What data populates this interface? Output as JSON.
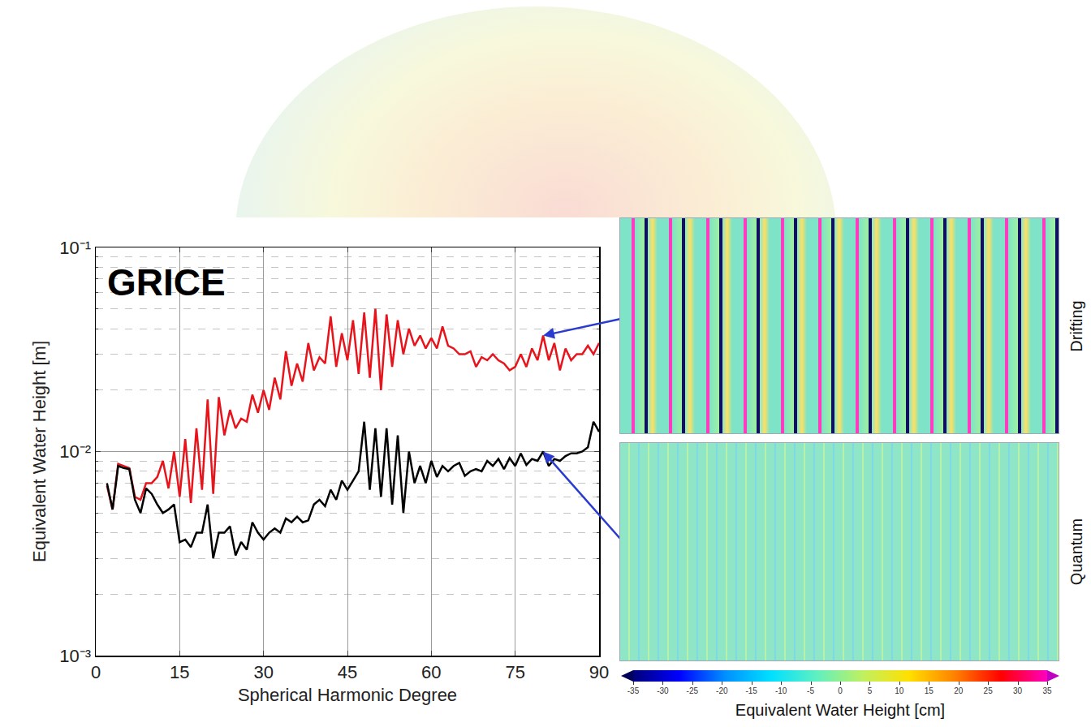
{
  "chart_data": {
    "type": "line",
    "title": "GRICE",
    "x_label": "Spherical Harmonic Degree",
    "y_label": "Equivalent Water Height [m]",
    "x": [
      2,
      3,
      4,
      5,
      6,
      7,
      8,
      9,
      10,
      11,
      12,
      13,
      14,
      15,
      16,
      17,
      18,
      19,
      20,
      21,
      22,
      23,
      24,
      25,
      26,
      27,
      28,
      29,
      30,
      31,
      32,
      33,
      34,
      35,
      36,
      37,
      38,
      39,
      40,
      41,
      42,
      43,
      44,
      45,
      46,
      47,
      48,
      49,
      50,
      51,
      52,
      53,
      54,
      55,
      56,
      57,
      58,
      59,
      60,
      61,
      62,
      63,
      64,
      65,
      66,
      67,
      68,
      69,
      70,
      71,
      72,
      73,
      74,
      75,
      76,
      77,
      78,
      79,
      80,
      81,
      82,
      83,
      84,
      85,
      86,
      87,
      88,
      89,
      90
    ],
    "series": [
      {
        "name": "Drifting",
        "color": "#e8141c",
        "values": [
          0.0068,
          0.0052,
          0.0087,
          0.0085,
          0.0083,
          0.006,
          0.0058,
          0.007,
          0.007,
          0.0075,
          0.009,
          0.0066,
          0.01,
          0.006,
          0.0115,
          0.0056,
          0.013,
          0.0065,
          0.018,
          0.0062,
          0.0185,
          0.012,
          0.016,
          0.013,
          0.0145,
          0.014,
          0.019,
          0.0155,
          0.02,
          0.016,
          0.023,
          0.018,
          0.031,
          0.021,
          0.027,
          0.022,
          0.034,
          0.025,
          0.029,
          0.027,
          0.046,
          0.026,
          0.038,
          0.028,
          0.044,
          0.024,
          0.048,
          0.023,
          0.05,
          0.02,
          0.047,
          0.026,
          0.044,
          0.03,
          0.04,
          0.033,
          0.037,
          0.032,
          0.036,
          0.032,
          0.041,
          0.033,
          0.032,
          0.03,
          0.03,
          0.031,
          0.026,
          0.029,
          0.028,
          0.03,
          0.028,
          0.027,
          0.025,
          0.026,
          0.03,
          0.026,
          0.032,
          0.028,
          0.037,
          0.028,
          0.034,
          0.025,
          0.032,
          0.028,
          0.03,
          0.03,
          0.033,
          0.03,
          0.034
        ]
      },
      {
        "name": "Quantum",
        "color": "#000000",
        "values": [
          0.007,
          0.0052,
          0.0085,
          0.0083,
          0.0082,
          0.0058,
          0.005,
          0.0066,
          0.0062,
          0.0055,
          0.005,
          0.0052,
          0.0055,
          0.0036,
          0.0037,
          0.0034,
          0.004,
          0.004,
          0.0055,
          0.003,
          0.004,
          0.004,
          0.0043,
          0.0031,
          0.0036,
          0.0033,
          0.0045,
          0.004,
          0.0037,
          0.004,
          0.0042,
          0.004,
          0.0047,
          0.0045,
          0.0048,
          0.0045,
          0.0046,
          0.0055,
          0.0058,
          0.0054,
          0.0065,
          0.0058,
          0.0072,
          0.0065,
          0.0072,
          0.008,
          0.014,
          0.0065,
          0.013,
          0.006,
          0.013,
          0.0055,
          0.012,
          0.005,
          0.01,
          0.007,
          0.0085,
          0.007,
          0.009,
          0.0075,
          0.0085,
          0.008,
          0.0085,
          0.0088,
          0.0076,
          0.008,
          0.0082,
          0.008,
          0.009,
          0.0085,
          0.0092,
          0.0082,
          0.0093,
          0.0085,
          0.0098,
          0.0086,
          0.0092,
          0.009,
          0.01,
          0.0085,
          0.0092,
          0.009,
          0.0095,
          0.0098,
          0.0098,
          0.01,
          0.0105,
          0.014,
          0.0125
        ]
      }
    ],
    "xlim": [
      0,
      90
    ],
    "xticks": [
      0,
      15,
      30,
      45,
      60,
      75,
      90
    ],
    "ylim": [
      0.001,
      0.1
    ],
    "yticks": [
      {
        "value": 0.001,
        "label": "10⁻³"
      },
      {
        "value": 0.01,
        "label": "10⁻²"
      },
      {
        "value": 0.1,
        "label": "10⁻¹"
      }
    ],
    "log": "y",
    "grid": true,
    "annotations": [
      {
        "series": "Drifting",
        "x": 80,
        "panel": "Drifting"
      },
      {
        "series": "Quantum",
        "x": 80,
        "panel": "Quantum"
      }
    ]
  },
  "panels": [
    {
      "label": "Drifting"
    },
    {
      "label": "Quantum"
    }
  ],
  "colorbar": {
    "title": "Equivalent Water Height [cm]",
    "range": [
      -35,
      35
    ],
    "ticks": [
      -35,
      -30,
      -25,
      -20,
      -15,
      -10,
      -5,
      0,
      5,
      10,
      15,
      20,
      25,
      30,
      35
    ]
  }
}
